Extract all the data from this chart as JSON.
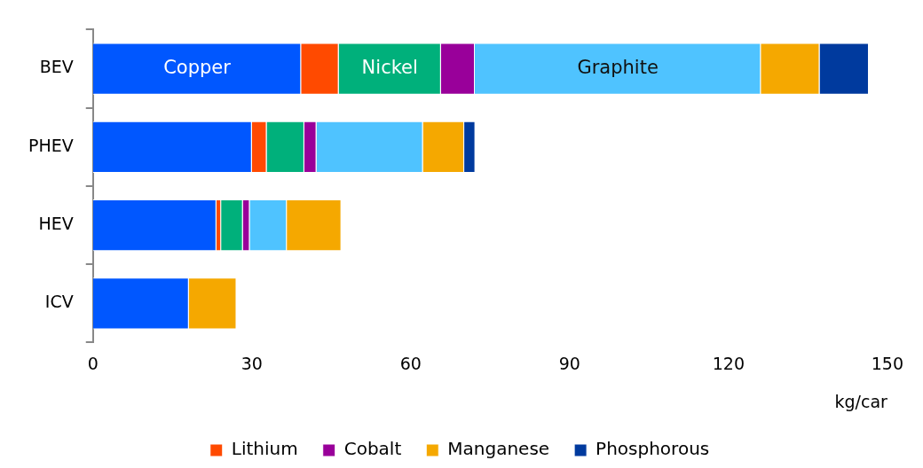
{
  "chart_data": {
    "type": "bar",
    "orientation": "horizontal",
    "stacked": true,
    "categories": [
      "BEV",
      "PHEV",
      "HEV",
      "ICV"
    ],
    "series": [
      {
        "name": "Copper",
        "color": "#0057ff",
        "values": [
          39.3,
          30,
          23.3,
          18.1
        ]
      },
      {
        "name": "Lithium",
        "color": "#ff4a00",
        "values": [
          7.1,
          2.8,
          0.9,
          null
        ]
      },
      {
        "name": "Nickel",
        "color": "#00b07b",
        "values": [
          19.3,
          7.1,
          4.1,
          null
        ]
      },
      {
        "name": "Cobalt",
        "color": "#99009a",
        "values": [
          6.4,
          2.3,
          1.3,
          null
        ]
      },
      {
        "name": "Graphite",
        "color": "#4fc3ff",
        "values": [
          54,
          20.1,
          7,
          null
        ]
      },
      {
        "name": "Manganese",
        "color": "#f5a800",
        "values": [
          11.1,
          7.8,
          10.3,
          9
        ]
      },
      {
        "name": "Phosphorous",
        "color": "#003a9e",
        "values": [
          9.3,
          2.1,
          null,
          null
        ]
      }
    ],
    "xlabel": "kg/car",
    "xlim": [
      0,
      150
    ],
    "xticks": [
      0,
      30,
      60,
      90,
      120,
      150
    ],
    "grid": false,
    "legend": "bottom"
  }
}
